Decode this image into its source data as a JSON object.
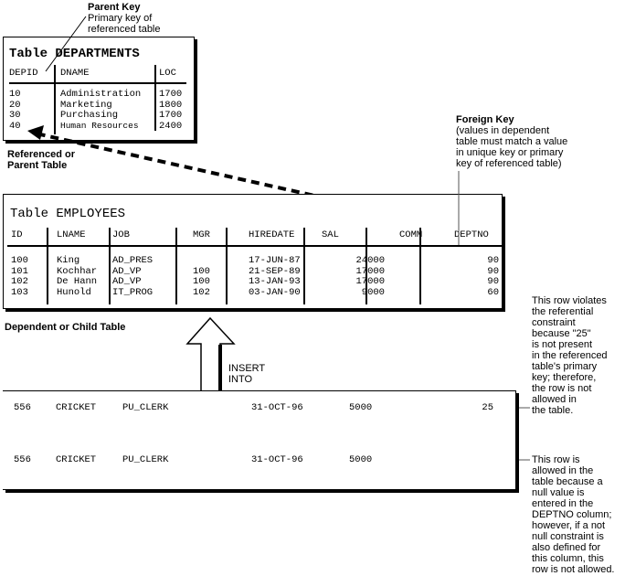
{
  "parent_key": {
    "title": "Parent Key",
    "text": "Primary key of\nreferenced table"
  },
  "departments": {
    "title": "Table DEPARTMENTS",
    "columns": [
      "DEPID",
      "DNAME",
      "LOC"
    ],
    "rows": [
      [
        "10",
        "Administration",
        "1700"
      ],
      [
        "20",
        "Marketing",
        "1800"
      ],
      [
        "30",
        "Purchasing",
        "1700"
      ],
      [
        "40",
        "Human Resources",
        "2400"
      ]
    ]
  },
  "referenced_label": "Referenced or\nParent Table",
  "foreign_key": {
    "title": "Foreign Key",
    "text": "(values in dependent\ntable must match a value\nin unique key or primary\nkey of referenced table)"
  },
  "employees": {
    "title": "Table EMPLOYEES",
    "columns": [
      "ID",
      "LNAME",
      "JOB",
      "MGR",
      "HIREDATE",
      "SAL",
      "COMM",
      "DEPTNO"
    ],
    "rows": [
      [
        "100",
        "King",
        "AD_PRES",
        "",
        "17-JUN-87",
        "24000",
        "",
        "90"
      ],
      [
        "101",
        "Kochhar",
        "AD_VP",
        "100",
        "21-SEP-89",
        "17000",
        "",
        "90"
      ],
      [
        "102",
        "De Hann",
        "AD_VP",
        "100",
        "13-JAN-93",
        "17000",
        "",
        "90"
      ],
      [
        "103",
        "Hunold",
        "IT_PROG",
        "102",
        "03-JAN-90",
        "9000",
        "",
        "60"
      ]
    ]
  },
  "dependent_label": "Dependent or Child Table",
  "insert_label": "INSERT\nINTO",
  "insert_rows": [
    [
      "556",
      "CRICKET",
      "PU_CLERK",
      "31-OCT-96",
      "5000",
      "25"
    ],
    [
      "556",
      "CRICKET",
      "PU_CLERK",
      "31-OCT-96",
      "5000",
      ""
    ]
  ],
  "notes": {
    "violates": "This row violates\nthe referential\nconstraint\nbecause \"25\"\nis not present\nin the referenced\ntable's primary\nkey; therefore,\nthe row is not\nallowed in\nthe table.",
    "allowed": "This row is\nallowed in the\ntable because a\nnull value is\nentered in the\nDEPTNO column;\nhowever, if a not\nnull constraint is\nalso defined for\nthis column, this\nrow is not allowed."
  }
}
